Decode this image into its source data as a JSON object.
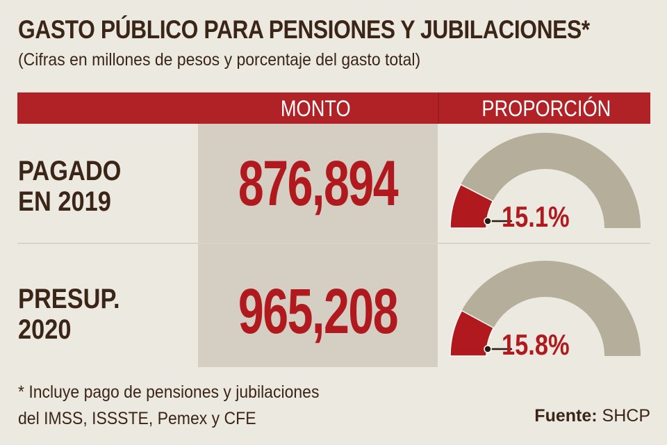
{
  "title": "GASTO PÚBLICO PARA PENSIONES Y JUBILACIONES*",
  "subtitle": "(Cifras en millones de pesos y porcentaje del gasto total)",
  "header": {
    "monto": "MONTO",
    "proporcion": "PROPORCIÓN"
  },
  "rows": [
    {
      "label_line1": "PAGADO",
      "label_line2": "EN 2019",
      "monto": "876,894",
      "proporcion": 15.1,
      "proporcion_label": "15.1%"
    },
    {
      "label_line1": "PRESUP.",
      "label_line2": "2020",
      "monto": "965,208",
      "proporcion": 15.8,
      "proporcion_label": "15.8%"
    }
  ],
  "footnote": {
    "line1": "* Incluye pago de pensiones y jubilaciones",
    "line2": "del IMSS, ISSSTE, Pemex y CFE"
  },
  "source": {
    "label": "Fuente:",
    "value": "SHCP"
  },
  "chart_data": {
    "type": "gauge",
    "categories": [
      "PAGADO EN 2019",
      "PRESUP. 2020"
    ],
    "values": [
      15.1,
      15.8
    ],
    "unit": "%",
    "range": [
      0,
      100
    ],
    "colors": {
      "value": "#b01a1e",
      "remainder": "#b4ae9b",
      "header": "#b02226"
    }
  }
}
